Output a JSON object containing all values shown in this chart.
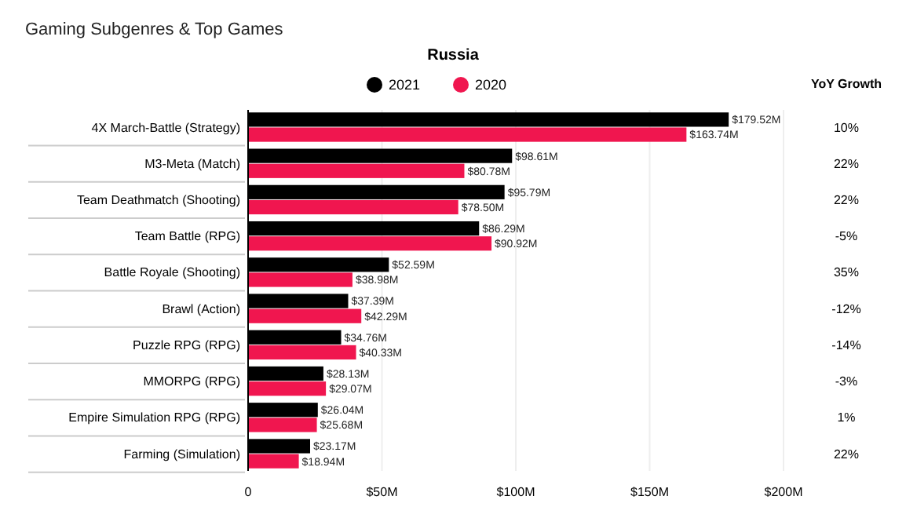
{
  "chart_data": {
    "type": "bar",
    "orientation": "horizontal",
    "title": "Gaming Subgenres & Top Games",
    "subtitle": "Russia",
    "categories": [
      "4X March-Battle (Strategy)",
      "M3-Meta (Match)",
      "Team Deathmatch (Shooting)",
      "Team Battle (RPG)",
      "Battle Royale (Shooting)",
      "Brawl (Action)",
      "Puzzle RPG (RPG)",
      "MMORPG (RPG)",
      "Empire Simulation RPG (RPG)",
      "Farming (Simulation)"
    ],
    "series": [
      {
        "name": "2021",
        "color": "#000000",
        "values": [
          179.52,
          98.61,
          95.79,
          86.29,
          52.59,
          37.39,
          34.76,
          28.13,
          26.04,
          23.17
        ],
        "value_labels": [
          "$179.52M",
          "$98.61M",
          "$95.79M",
          "$86.29M",
          "$52.59M",
          "$37.39M",
          "$34.76M",
          "$28.13M",
          "$26.04M",
          "$23.17M"
        ]
      },
      {
        "name": "2020",
        "color": "#f0164f",
        "values": [
          163.74,
          80.78,
          78.5,
          90.92,
          38.98,
          42.29,
          40.33,
          29.07,
          25.68,
          18.94
        ],
        "value_labels": [
          "$163.74M",
          "$80.78M",
          "$78.50M",
          "$90.92M",
          "$38.98M",
          "$42.29M",
          "$40.33M",
          "$29.07M",
          "$25.68M",
          "$18.94M"
        ]
      }
    ],
    "xlim": [
      0,
      200
    ],
    "xticks": [
      0,
      {
        "value": 50,
        "label": "$50M"
      },
      {
        "value": 100,
        "label": "$100M"
      },
      {
        "value": 150,
        "label": "$150M"
      },
      {
        "value": 200,
        "label": "$200M"
      }
    ],
    "grid": "x",
    "legend": "top",
    "annotations": [
      "YoY Growth",
      "10%",
      "22%",
      "22%",
      "-5%",
      "35%",
      "-12%",
      "-14%",
      "-3%",
      "1%",
      "22%"
    ]
  }
}
